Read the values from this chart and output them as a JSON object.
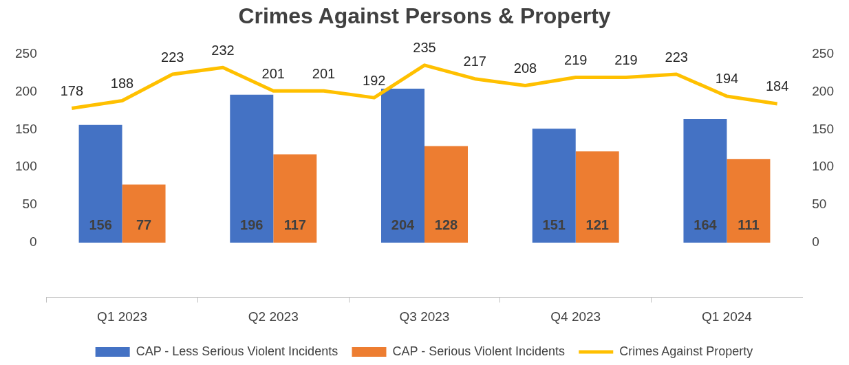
{
  "chart_data": {
    "type": "bar",
    "title": "Crimes Against Persons & Property",
    "categories": [
      null,
      "Q1 2023",
      null,
      null,
      "Q2 2023",
      null,
      null,
      "Q3 2023",
      null,
      null,
      "Q4 2023",
      null,
      null,
      "Q1 2024",
      null
    ],
    "series": [
      {
        "name": "CAP - Less Serious Violent Incidents",
        "color": "#4472c4",
        "values": [
          null,
          156,
          null,
          null,
          196,
          null,
          null,
          204,
          null,
          null,
          151,
          null,
          null,
          164,
          null
        ]
      },
      {
        "name": "CAP - Serious Violent Incidents",
        "color": "#ed7d31",
        "values": [
          null,
          77,
          null,
          null,
          117,
          null,
          null,
          128,
          null,
          null,
          121,
          null,
          null,
          111,
          null
        ]
      },
      {
        "name": "Crimes Against Property",
        "type": "line",
        "axis": "y2",
        "color": "#ffc000",
        "values": [
          178,
          188,
          223,
          232,
          201,
          201,
          192,
          235,
          217,
          208,
          219,
          219,
          223,
          194,
          184
        ]
      }
    ],
    "ylim": [
      -72,
      250
    ],
    "yticks": [
      0,
      50,
      100,
      150,
      200,
      250
    ],
    "y2lim": [
      -72,
      250
    ],
    "y2ticks": [
      0,
      50,
      100,
      150,
      200,
      250
    ],
    "data_labels": true,
    "grid": false,
    "legend": "bottom",
    "marker": "none",
    "line_style": "solid"
  }
}
